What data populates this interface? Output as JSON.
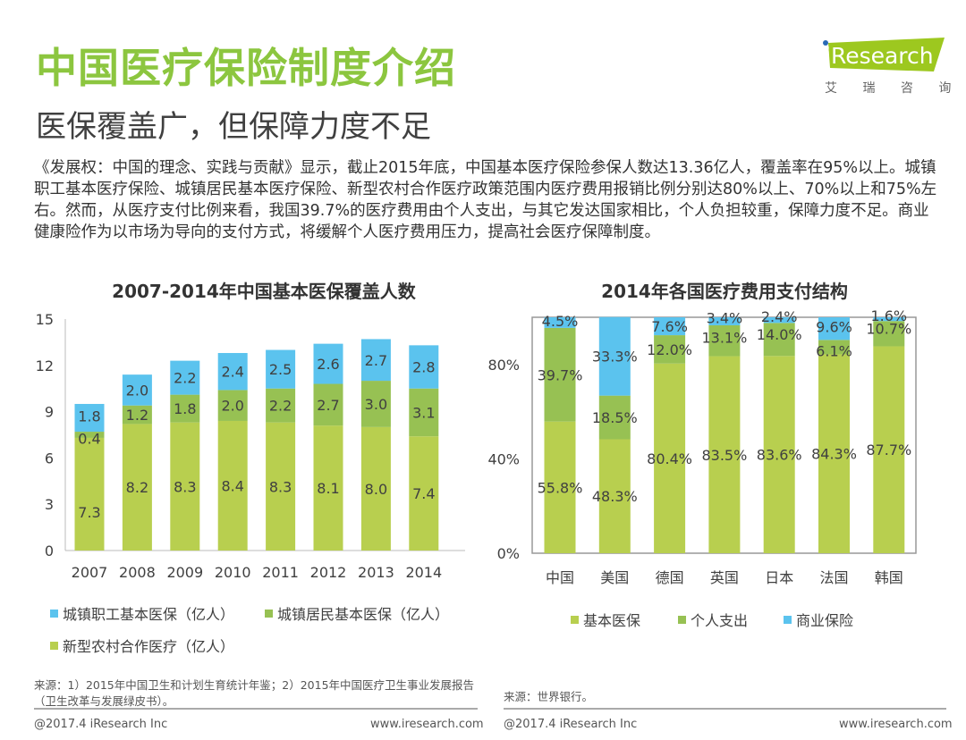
{
  "title": "中国医疗保险制度介绍",
  "subtitle": "医保覆盖广，但保障力度不足",
  "body": "《发展权：中国的理念、实践与贡献》显示，截止2015年底，中国基本医疗保险参保人数达13.36亿人，覆盖率在95%以上。城镇职工基本医疗保险、城镇居民基本医疗保险、新型农村合作医疗政策范围内医疗费用报销比例分别达80%以上、70%以上和75%左右。然而，从医疗支付比例来看，我国39.7%的医疗费用由个人支出，与其它发达国家相比，个人负担较重，保障力度不足。商业健康险作为以市场为导向的支付方式，将缓解个人医疗费用压力，提高社会医疗保障制度。",
  "logo": {
    "text": "iResearch",
    "sub": "艾 瑞 咨 询",
    "color": "#9dc81f"
  },
  "chart_data": [
    {
      "type": "bar",
      "stacked": true,
      "title": "2007-2014年中国基本医保覆盖人数",
      "categories": [
        "2007",
        "2008",
        "2009",
        "2010",
        "2011",
        "2012",
        "2013",
        "2014"
      ],
      "yticks": [
        "0",
        "3",
        "6",
        "9",
        "12",
        "15"
      ],
      "ylim": [
        0,
        15
      ],
      "series": [
        {
          "name": "新型农村合作医疗（亿人）",
          "color": "#b8cf4f",
          "values": [
            7.3,
            8.2,
            8.3,
            8.4,
            8.3,
            8.1,
            8.0,
            7.4
          ],
          "labels": [
            "7.3",
            "8.2",
            "8.3",
            "8.4",
            "8.3",
            "8.1",
            "8.0",
            "7.4"
          ]
        },
        {
          "name": "城镇居民基本医保（亿人）",
          "color": "#97c153",
          "values": [
            0.4,
            1.2,
            1.8,
            2.0,
            2.2,
            2.7,
            3.0,
            3.1
          ],
          "labels": [
            "0.4",
            "1.2",
            "1.8",
            "2.0",
            "2.2",
            "2.7",
            "3.0",
            "3.1"
          ]
        },
        {
          "name": "城镇职工基本医保（亿人）",
          "color": "#5bc3ee",
          "values": [
            1.8,
            2.0,
            2.2,
            2.4,
            2.5,
            2.6,
            2.7,
            2.8
          ],
          "labels": [
            "1.8",
            "2.0",
            "2.2",
            "2.4",
            "2.5",
            "2.6",
            "2.7",
            "2.8"
          ]
        }
      ],
      "legend": "bottom",
      "source": "来源：1）2015年中国卫生和计划生育统计年鉴；2）2015年中国医疗卫生事业发展报告（卫生改革与发展绿皮书）。"
    },
    {
      "type": "bar",
      "stacked": true,
      "title": "2014年各国医疗费用支付结构",
      "categories": [
        "中国",
        "美国",
        "德国",
        "英国",
        "日本",
        "法国",
        "韩国"
      ],
      "yticks": [
        "0%",
        "40%",
        "80%"
      ],
      "ylim": [
        0,
        100
      ],
      "series": [
        {
          "name": "基本医保",
          "color": "#b8cf4f",
          "values": [
            55.8,
            48.3,
            80.4,
            83.5,
            83.6,
            84.3,
            87.7
          ],
          "labels": [
            "55.8%",
            "48.3%",
            "80.4%",
            "83.5%",
            "83.6%",
            "84.3%",
            "87.7%"
          ]
        },
        {
          "name": "个人支出",
          "color": "#97c153",
          "values": [
            39.7,
            18.5,
            12.0,
            13.1,
            14.0,
            6.1,
            10.7
          ],
          "labels": [
            "39.7%",
            "18.5%",
            "12.0%",
            "13.1%",
            "14.0%",
            "6.1%",
            "10.7%"
          ]
        },
        {
          "name": "商业保险",
          "color": "#5bc3ee",
          "values": [
            4.5,
            33.3,
            7.6,
            3.4,
            2.4,
            9.6,
            1.6
          ],
          "labels": [
            "4.5%",
            "33.3%",
            "7.6%",
            "3.4%",
            "2.4%",
            "9.6%",
            "1.6%"
          ]
        }
      ],
      "legend": "bottom",
      "source": "来源：世界银行。"
    }
  ],
  "footer": {
    "copyright": "@2017.4 iResearch Inc",
    "url": "www.iresearch.com"
  }
}
